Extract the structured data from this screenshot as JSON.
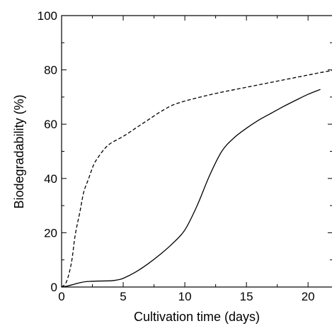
{
  "chart_data": {
    "type": "line",
    "title": "",
    "xlabel": "Cultivation time (days)",
    "ylabel": "Biodegradability (%)",
    "xlim": [
      0,
      22
    ],
    "ylim": [
      0,
      100
    ],
    "x_ticks": [
      0,
      5,
      10,
      15,
      20
    ],
    "x_tick_labels": [
      "0",
      "5",
      "10",
      "15",
      "20"
    ],
    "y_ticks": [
      0,
      20,
      40,
      60,
      80,
      100
    ],
    "y_tick_labels": [
      "0",
      "20",
      "40",
      "60",
      "80",
      "100"
    ],
    "grid": false,
    "legend": "none",
    "series": [
      {
        "style": "dashed",
        "color": "#000000",
        "x": [
          0.0,
          0.4,
          0.8,
          1.1,
          1.5,
          1.8,
          2.2,
          2.6,
          3.0,
          3.5,
          4.0,
          5.0,
          6.0,
          7.0,
          8.0,
          9.0,
          10.0,
          11.0,
          12.0,
          13.0,
          14.0,
          15.0,
          16.0,
          17.0,
          18.0,
          19.0,
          20.0,
          21.0,
          22.0
        ],
        "y": [
          0,
          2,
          9,
          19,
          28,
          35,
          40,
          45,
          48,
          51,
          53,
          55.5,
          58.5,
          61.5,
          64.5,
          67,
          68.5,
          69.7,
          70.8,
          71.8,
          72.7,
          73.6,
          74.5,
          75.4,
          76.3,
          77.2,
          78.1,
          79.0,
          79.8
        ]
      },
      {
        "style": "solid",
        "color": "#000000",
        "x": [
          0.0,
          0.5,
          1.0,
          1.5,
          2.0,
          3.0,
          4.0,
          4.5,
          5.0,
          6.0,
          7.0,
          8.0,
          9.0,
          10.0,
          11.0,
          12.0,
          13.0,
          14.0,
          15.0,
          16.0,
          17.0,
          18.0,
          19.0,
          20.0,
          21.0
        ],
        "y": [
          0,
          0.4,
          1.0,
          1.6,
          2.0,
          2.2,
          2.3,
          2.6,
          3.2,
          5.5,
          8.5,
          12,
          16,
          21,
          30,
          41,
          50,
          55,
          58.5,
          61.5,
          64,
          66.5,
          68.8,
          71,
          72.8
        ]
      }
    ]
  }
}
